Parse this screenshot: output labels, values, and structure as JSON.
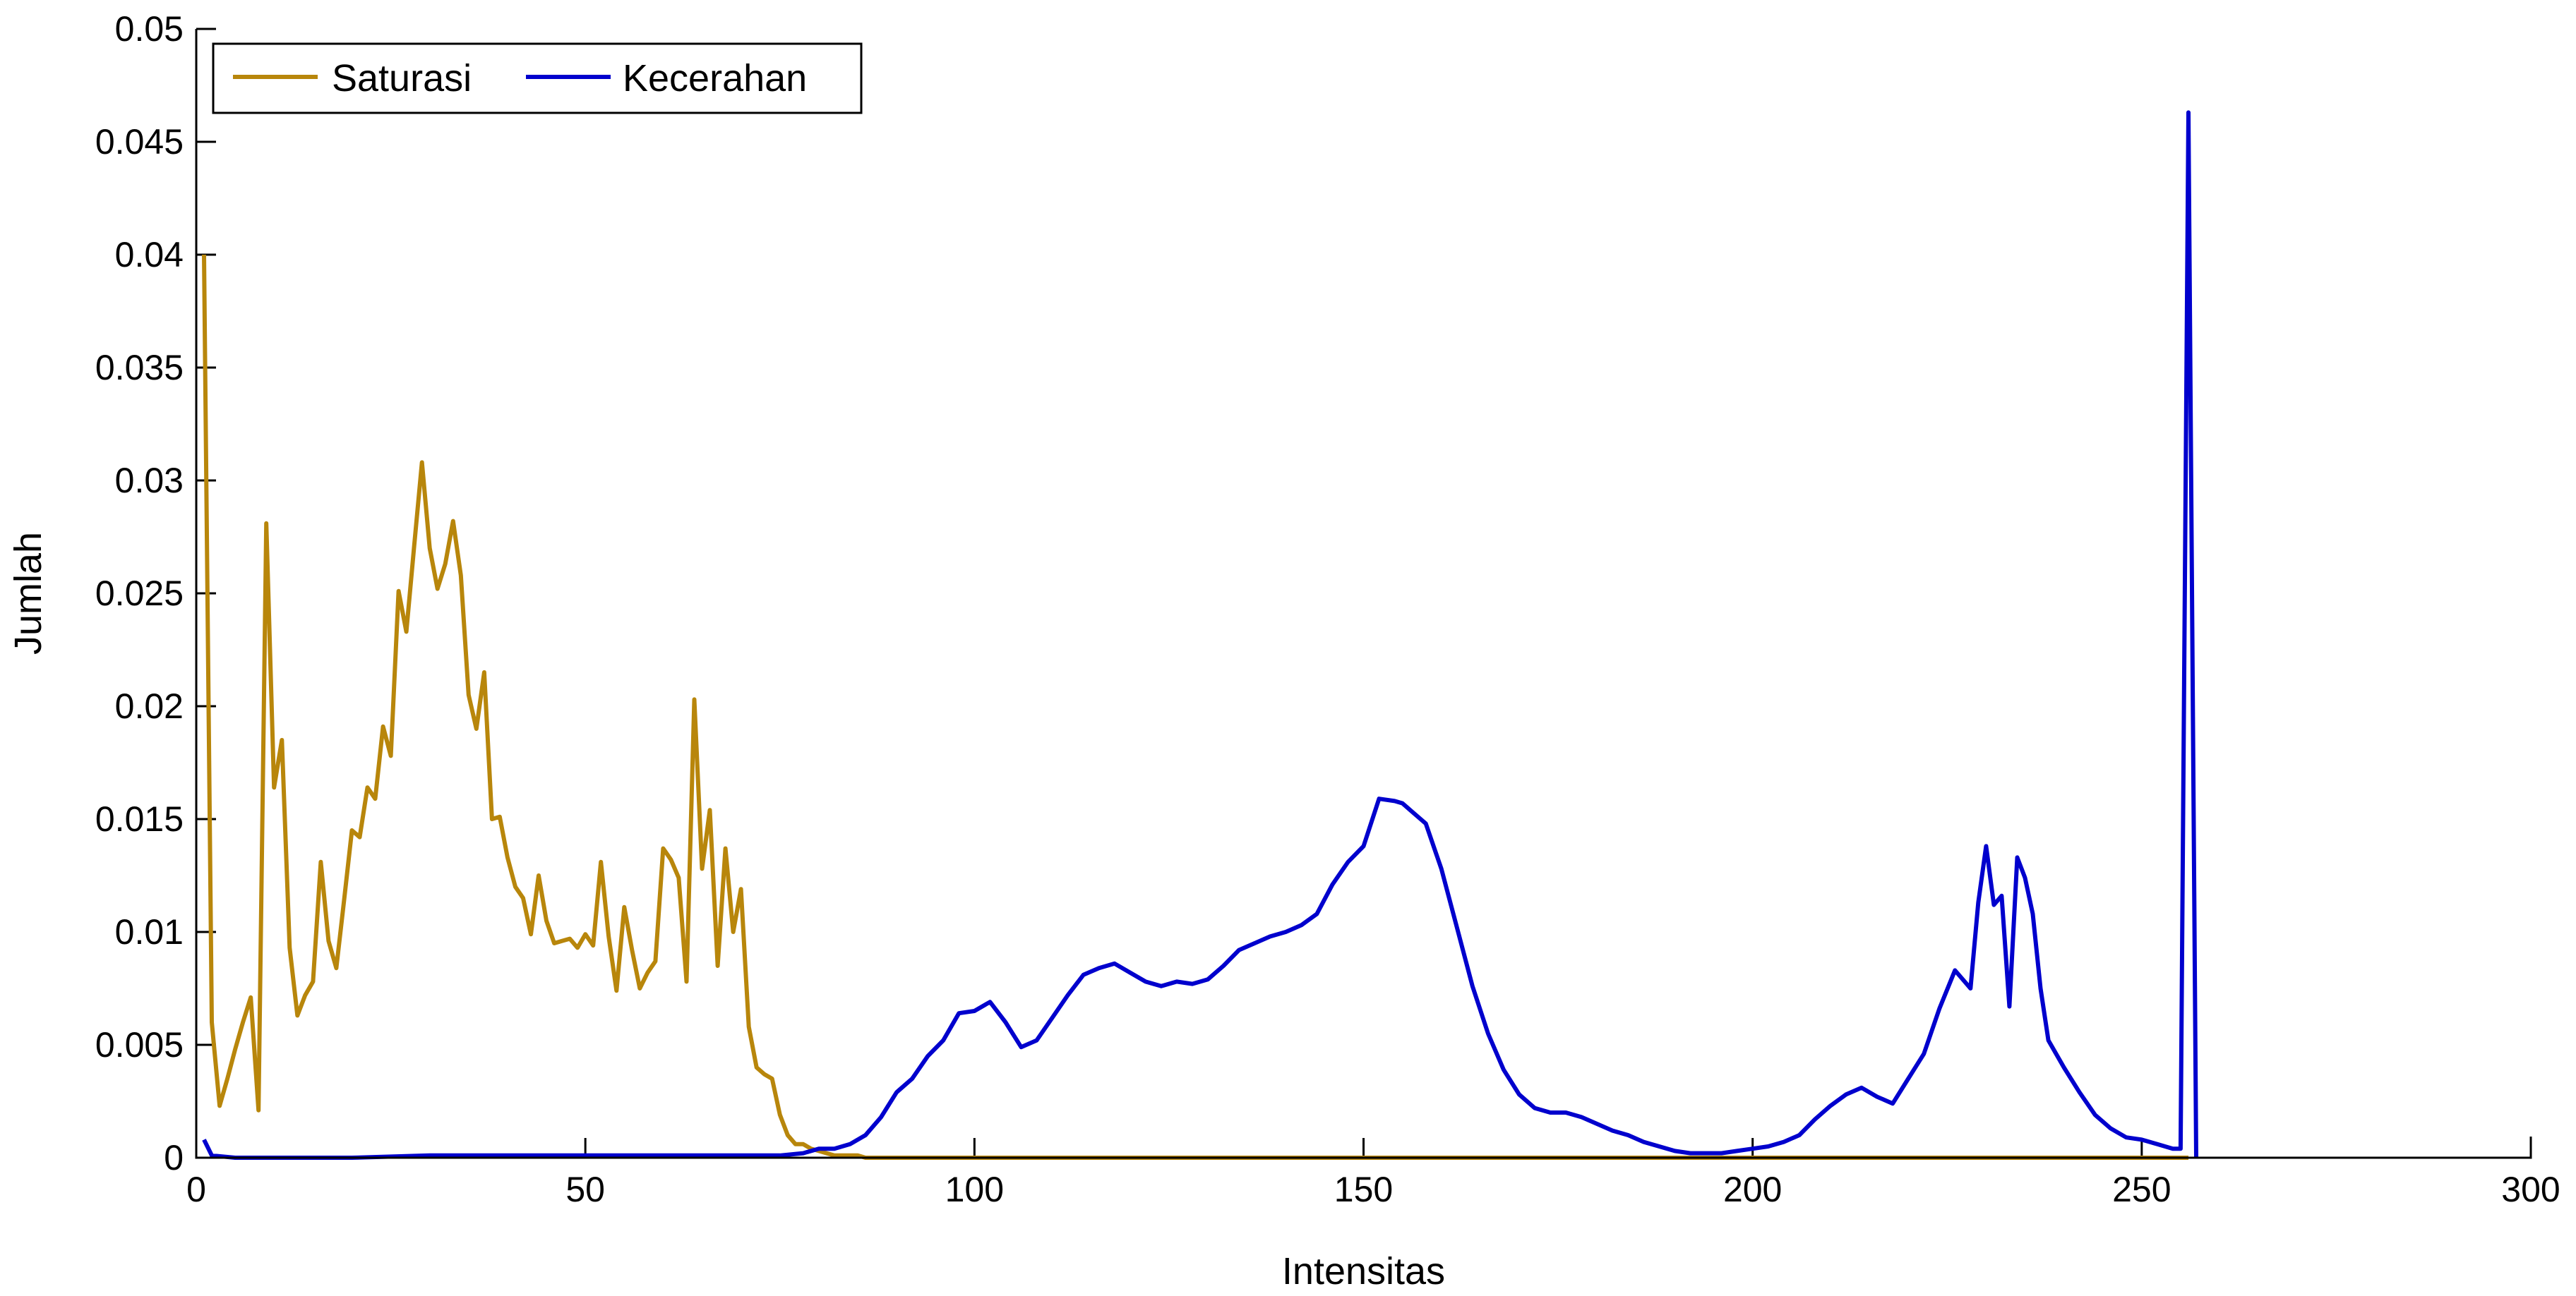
{
  "chart_data": {
    "type": "line",
    "xlabel": "Intensitas",
    "ylabel": "Jumlah",
    "xlim": [
      0,
      300
    ],
    "ylim": [
      0,
      0.05
    ],
    "xticks": [
      0,
      50,
      100,
      150,
      200,
      250,
      300
    ],
    "xtick_labels": [
      "0",
      "50",
      "100",
      "150",
      "200",
      "250",
      "300"
    ],
    "yticks": [
      0,
      0.005,
      0.01,
      0.015,
      0.02,
      0.025,
      0.03,
      0.035,
      0.04,
      0.045,
      0.05
    ],
    "ytick_labels": [
      "0",
      "0.005",
      "0.01",
      "0.015",
      "0.02",
      "0.025",
      "0.03",
      "0.035",
      "0.04",
      "0.045",
      "0.05"
    ],
    "grid": false,
    "legend_position": "top-left",
    "series": [
      {
        "name": "Saturasi",
        "color": "#B8860B",
        "x": [
          1,
          2,
          3,
          4,
          5,
          6,
          7,
          8,
          9,
          10,
          11,
          12,
          13,
          14,
          15,
          16,
          17,
          18,
          19,
          20,
          21,
          22,
          23,
          24,
          25,
          26,
          27,
          28,
          29,
          30,
          31,
          32,
          33,
          34,
          35,
          36,
          37,
          38,
          39,
          40,
          41,
          42,
          43,
          44,
          45,
          46,
          47,
          48,
          49,
          50,
          51,
          52,
          53,
          54,
          55,
          56,
          57,
          58,
          59,
          60,
          61,
          62,
          63,
          64,
          65,
          66,
          67,
          68,
          69,
          70,
          71,
          72,
          73,
          74,
          75,
          76,
          77,
          78,
          79,
          80,
          81,
          82,
          83,
          84,
          85,
          86,
          87,
          88,
          89,
          90,
          95,
          100,
          110,
          120,
          150,
          200,
          256
        ],
        "y": [
          0.04,
          0.006,
          0.0023,
          0.0035,
          0.0048,
          0.006,
          0.0071,
          0.0021,
          0.0281,
          0.0164,
          0.0185,
          0.0093,
          0.0063,
          0.0072,
          0.0078,
          0.0131,
          0.0096,
          0.0084,
          0.0114,
          0.0145,
          0.0142,
          0.0164,
          0.0159,
          0.0191,
          0.0178,
          0.0251,
          0.0233,
          0.0271,
          0.0308,
          0.027,
          0.0252,
          0.0263,
          0.0282,
          0.0258,
          0.0205,
          0.019,
          0.0215,
          0.015,
          0.0151,
          0.0133,
          0.012,
          0.0115,
          0.0099,
          0.0125,
          0.0105,
          0.0095,
          0.0096,
          0.0097,
          0.0093,
          0.0099,
          0.0094,
          0.0131,
          0.0098,
          0.0074,
          0.0111,
          0.0092,
          0.0075,
          0.0082,
          0.0087,
          0.0137,
          0.0132,
          0.0124,
          0.0078,
          0.0203,
          0.0128,
          0.0154,
          0.0085,
          0.0137,
          0.01,
          0.0119,
          0.0058,
          0.004,
          0.0037,
          0.0035,
          0.0019,
          0.001,
          0.0006,
          0.0006,
          0.0004,
          0.0003,
          0.0002,
          0.0001,
          0.0001,
          0.0001,
          0.0001,
          0.0,
          0.0,
          0.0,
          0.0,
          0.0,
          0.0,
          0.0,
          0.0,
          0.0,
          0.0,
          0.0,
          0.0
        ]
      },
      {
        "name": "Kecerahan",
        "color": "#0000CD",
        "x": [
          1,
          2,
          5,
          10,
          20,
          30,
          40,
          50,
          60,
          65,
          70,
          75,
          78,
          80,
          82,
          84,
          86,
          88,
          90,
          92,
          94,
          96,
          98,
          100,
          102,
          104,
          106,
          108,
          110,
          112,
          114,
          116,
          118,
          120,
          122,
          124,
          126,
          128,
          130,
          132,
          134,
          136,
          138,
          140,
          142,
          144,
          146,
          148,
          150,
          152,
          154,
          155,
          156,
          158,
          160,
          162,
          164,
          166,
          168,
          170,
          172,
          174,
          176,
          178,
          180,
          182,
          184,
          186,
          188,
          190,
          192,
          194,
          196,
          198,
          200,
          202,
          204,
          206,
          208,
          210,
          212,
          214,
          216,
          218,
          220,
          222,
          224,
          226,
          228,
          229,
          230,
          231,
          232,
          233,
          234,
          235,
          236,
          237,
          238,
          240,
          242,
          244,
          246,
          248,
          250,
          252,
          254,
          255,
          256,
          257
        ],
        "y": [
          0.0008,
          0.0001,
          0.0,
          0.0,
          0.0,
          0.0001,
          0.0001,
          0.0001,
          0.0001,
          0.0001,
          0.0001,
          0.0001,
          0.0002,
          0.0004,
          0.0004,
          0.0006,
          0.001,
          0.0018,
          0.0029,
          0.0035,
          0.0045,
          0.0052,
          0.0064,
          0.0065,
          0.0069,
          0.006,
          0.0049,
          0.0052,
          0.0062,
          0.0072,
          0.0081,
          0.0084,
          0.0086,
          0.0082,
          0.0078,
          0.0076,
          0.0078,
          0.0077,
          0.0079,
          0.0085,
          0.0092,
          0.0095,
          0.0098,
          0.01,
          0.0103,
          0.0108,
          0.0121,
          0.0131,
          0.0138,
          0.0159,
          0.0158,
          0.0157,
          0.0154,
          0.0148,
          0.0128,
          0.0102,
          0.0076,
          0.0055,
          0.0039,
          0.0028,
          0.0022,
          0.002,
          0.002,
          0.0018,
          0.0015,
          0.0012,
          0.001,
          0.0007,
          0.0005,
          0.0003,
          0.0002,
          0.0002,
          0.0002,
          0.0003,
          0.0004,
          0.0005,
          0.0007,
          0.001,
          0.0017,
          0.0023,
          0.0028,
          0.0031,
          0.0027,
          0.0024,
          0.0035,
          0.0046,
          0.0066,
          0.0083,
          0.0075,
          0.0113,
          0.0138,
          0.0112,
          0.0116,
          0.0067,
          0.0133,
          0.0124,
          0.0108,
          0.0075,
          0.0052,
          0.004,
          0.0029,
          0.0019,
          0.0013,
          0.0009,
          0.0008,
          0.0006,
          0.0004,
          0.0004,
          0.0463,
          0.0
        ]
      }
    ]
  }
}
